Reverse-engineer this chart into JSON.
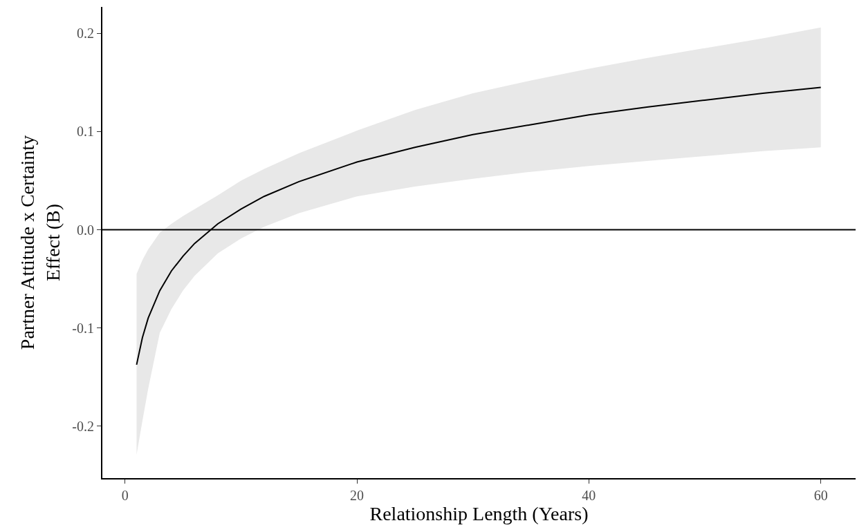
{
  "chart_data": {
    "type": "line",
    "xlabel": "Relationship Length (Years)",
    "ylabel": "Partner Attitude x Certainty\nEffect (B)",
    "x": [
      1,
      1.5,
      2,
      3,
      4,
      5,
      6,
      8,
      10,
      12,
      15,
      20,
      25,
      30,
      35,
      40,
      45,
      50,
      55,
      60
    ],
    "series": [
      {
        "color": "#000000",
        "values": [
          -0.1375,
          -0.11,
          -0.09,
          -0.062,
          -0.042,
          -0.027,
          -0.014,
          0.006,
          0.021,
          0.034,
          0.049,
          0.069,
          0.084,
          0.097,
          0.107,
          0.117,
          0.125,
          0.132,
          0.139,
          0.145
        ],
        "lower": [
          -0.229,
          -0.195,
          -0.162,
          -0.105,
          -0.081,
          -0.062,
          -0.047,
          -0.024,
          -0.009,
          0.003,
          0.017,
          0.034,
          0.044,
          0.052,
          0.059,
          0.065,
          0.07,
          0.075,
          0.08,
          0.084
        ],
        "upper": [
          -0.045,
          -0.031,
          -0.02,
          -0.003,
          0.006,
          0.014,
          0.021,
          0.035,
          0.05,
          0.062,
          0.078,
          0.101,
          0.122,
          0.139,
          0.152,
          0.164,
          0.175,
          0.185,
          0.195,
          0.206
        ]
      }
    ],
    "xlim": [
      -1.95,
      63.0
    ],
    "xticks": [
      0,
      20,
      40,
      60
    ],
    "ylim": [
      -0.253,
      0.227
    ],
    "yticks": [
      {
        "value": -0.2,
        "label": "-0.2"
      },
      {
        "value": -0.1,
        "label": "-0.1"
      },
      {
        "value": 0,
        "label": "0.0"
      },
      {
        "value": 0.1,
        "label": "0.1"
      },
      {
        "value": 0.2,
        "label": "0.2"
      }
    ],
    "ref_lines": [
      {
        "axis": "y",
        "value": 0,
        "color": "#000000"
      }
    ],
    "marker": "none",
    "line_style": "solid"
  }
}
